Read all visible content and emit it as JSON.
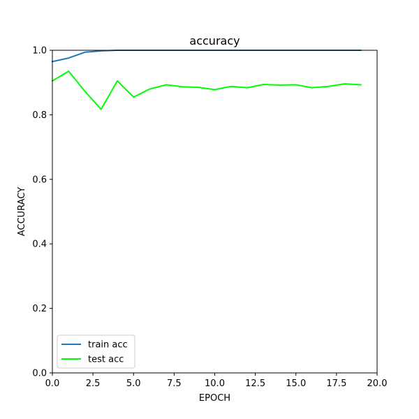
{
  "chart_data": {
    "type": "line",
    "title": "accuracy",
    "xlabel": "EPOCH",
    "ylabel": "ACCURACY",
    "xlim": [
      0,
      20
    ],
    "ylim": [
      0,
      1
    ],
    "xticks": [
      0,
      2.5,
      5,
      7.5,
      10,
      12.5,
      15,
      17.5,
      20
    ],
    "xtick_labels": [
      "0.0",
      "2.5",
      "5.0",
      "7.5",
      "10.0",
      "12.5",
      "15.0",
      "17.5",
      "20.0"
    ],
    "yticks": [
      0,
      0.2,
      0.4,
      0.6,
      0.8,
      1.0
    ],
    "ytick_labels": [
      "0.0",
      "0.2",
      "0.4",
      "0.6",
      "0.8",
      "1.0"
    ],
    "grid": false,
    "legend_position": "bottom-left",
    "x": [
      0,
      1,
      2,
      3,
      4,
      5,
      6,
      7,
      8,
      9,
      10,
      11,
      12,
      13,
      14,
      15,
      16,
      17,
      18,
      19
    ],
    "series": [
      {
        "name": "train acc",
        "color": "#1f77b4",
        "values": [
          0.965,
          0.976,
          0.994,
          0.998,
          1.0,
          1.0,
          1.0,
          1.0,
          1.0,
          1.0,
          1.0,
          1.0,
          1.0,
          1.0,
          1.0,
          1.0,
          1.0,
          1.0,
          1.0,
          1.0
        ]
      },
      {
        "name": "test acc",
        "color": "#00ff00",
        "values": [
          0.905,
          0.935,
          0.873,
          0.817,
          0.905,
          0.855,
          0.88,
          0.893,
          0.887,
          0.885,
          0.878,
          0.888,
          0.884,
          0.894,
          0.892,
          0.893,
          0.884,
          0.888,
          0.896,
          0.893
        ]
      }
    ]
  }
}
